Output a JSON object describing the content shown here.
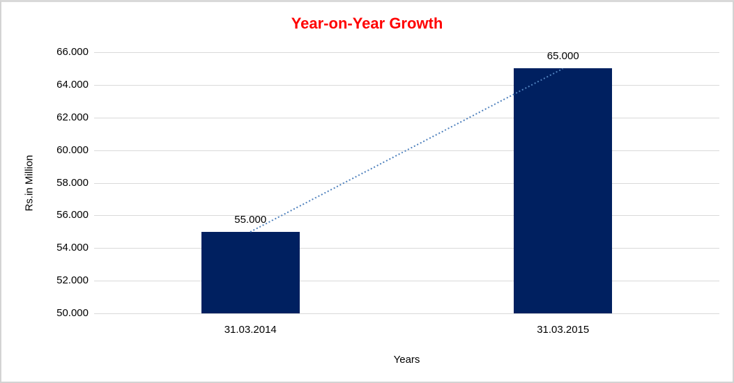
{
  "window": {
    "background": "#ffffff",
    "border_color": "#d3d3d3"
  },
  "chart_data": {
    "type": "bar",
    "title": "Year-on-Year Growth",
    "title_color": "#ff0000",
    "categories": [
      "31.03.2014",
      "31.03.2015"
    ],
    "values": [
      55000,
      65000
    ],
    "value_labels": [
      "55.000",
      "65.000"
    ],
    "xlabel": "Years",
    "ylabel": "Rs.in Million",
    "ylim": [
      50000,
      66000
    ],
    "ytick_step": 2000,
    "ytick_labels": [
      "50.000",
      "52.000",
      "54.000",
      "56.000",
      "58.000",
      "60.000",
      "62.000",
      "64.000",
      "66.000"
    ],
    "bar_color": "#002060",
    "gridline_color": "#d9d9d9",
    "grid": true,
    "legend": false,
    "text_color": "#000000",
    "trendline": {
      "style": "dotted",
      "color": "#4f81bd",
      "connects": "bar-top-centers"
    }
  }
}
